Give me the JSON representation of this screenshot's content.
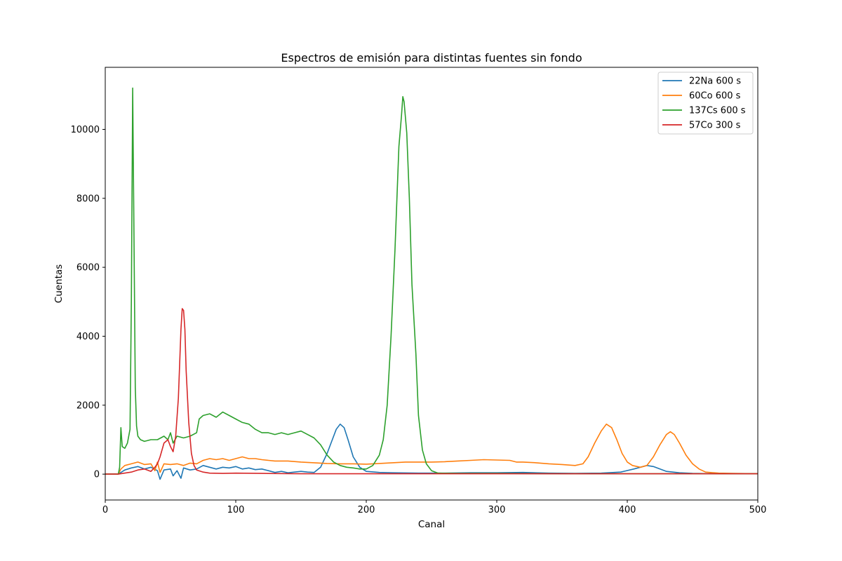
{
  "chart_data": {
    "type": "line",
    "title": "Espectros de emisión para distintas fuentes sin fondo",
    "xlabel": "Canal",
    "ylabel": "Cuentas",
    "xlim": [
      0,
      500
    ],
    "ylim": [
      -750,
      11800
    ],
    "xticks": [
      0,
      100,
      200,
      300,
      400,
      500
    ],
    "yticks": [
      0,
      2000,
      4000,
      6000,
      8000,
      10000
    ],
    "grid": false,
    "legend_position": "top-right",
    "series": [
      {
        "name": "22Na 600 s",
        "color": "#1f77b4",
        "points": [
          [
            0,
            0
          ],
          [
            10,
            0
          ],
          [
            15,
            120
          ],
          [
            20,
            180
          ],
          [
            25,
            220
          ],
          [
            30,
            150
          ],
          [
            35,
            200
          ],
          [
            40,
            100
          ],
          [
            42,
            -150
          ],
          [
            45,
            120
          ],
          [
            50,
            150
          ],
          [
            52,
            -50
          ],
          [
            55,
            100
          ],
          [
            58,
            -120
          ],
          [
            60,
            180
          ],
          [
            65,
            120
          ],
          [
            70,
            150
          ],
          [
            75,
            250
          ],
          [
            80,
            200
          ],
          [
            85,
            150
          ],
          [
            90,
            200
          ],
          [
            95,
            180
          ],
          [
            100,
            220
          ],
          [
            105,
            150
          ],
          [
            110,
            180
          ],
          [
            115,
            130
          ],
          [
            120,
            150
          ],
          [
            125,
            100
          ],
          [
            130,
            50
          ],
          [
            135,
            80
          ],
          [
            140,
            40
          ],
          [
            145,
            60
          ],
          [
            150,
            80
          ],
          [
            155,
            60
          ],
          [
            160,
            50
          ],
          [
            165,
            200
          ],
          [
            170,
            600
          ],
          [
            174,
            1000
          ],
          [
            177,
            1300
          ],
          [
            180,
            1450
          ],
          [
            183,
            1350
          ],
          [
            186,
            1000
          ],
          [
            190,
            500
          ],
          [
            195,
            200
          ],
          [
            200,
            80
          ],
          [
            210,
            50
          ],
          [
            220,
            40
          ],
          [
            240,
            30
          ],
          [
            260,
            30
          ],
          [
            280,
            40
          ],
          [
            300,
            40
          ],
          [
            320,
            50
          ],
          [
            340,
            30
          ],
          [
            360,
            20
          ],
          [
            380,
            30
          ],
          [
            395,
            60
          ],
          [
            405,
            150
          ],
          [
            410,
            200
          ],
          [
            415,
            250
          ],
          [
            420,
            220
          ],
          [
            425,
            150
          ],
          [
            430,
            80
          ],
          [
            440,
            40
          ],
          [
            450,
            20
          ],
          [
            470,
            10
          ],
          [
            500,
            10
          ]
        ]
      },
      {
        "name": "60Co 600 s",
        "color": "#ff7f0e",
        "points": [
          [
            0,
            0
          ],
          [
            10,
            0
          ],
          [
            12,
            150
          ],
          [
            15,
            250
          ],
          [
            20,
            300
          ],
          [
            25,
            350
          ],
          [
            30,
            280
          ],
          [
            35,
            300
          ],
          [
            38,
            100
          ],
          [
            40,
            350
          ],
          [
            42,
            50
          ],
          [
            45,
            300
          ],
          [
            50,
            280
          ],
          [
            55,
            300
          ],
          [
            60,
            250
          ],
          [
            65,
            320
          ],
          [
            70,
            300
          ],
          [
            75,
            400
          ],
          [
            80,
            450
          ],
          [
            85,
            420
          ],
          [
            90,
            450
          ],
          [
            95,
            400
          ],
          [
            100,
            450
          ],
          [
            105,
            500
          ],
          [
            110,
            450
          ],
          [
            115,
            450
          ],
          [
            120,
            420
          ],
          [
            125,
            400
          ],
          [
            130,
            380
          ],
          [
            140,
            380
          ],
          [
            150,
            350
          ],
          [
            160,
            330
          ],
          [
            170,
            310
          ],
          [
            180,
            300
          ],
          [
            190,
            300
          ],
          [
            200,
            290
          ],
          [
            210,
            310
          ],
          [
            220,
            330
          ],
          [
            230,
            350
          ],
          [
            240,
            350
          ],
          [
            250,
            350
          ],
          [
            260,
            360
          ],
          [
            270,
            380
          ],
          [
            280,
            400
          ],
          [
            290,
            420
          ],
          [
            300,
            410
          ],
          [
            310,
            400
          ],
          [
            315,
            350
          ],
          [
            320,
            350
          ],
          [
            330,
            330
          ],
          [
            340,
            300
          ],
          [
            350,
            280
          ],
          [
            360,
            250
          ],
          [
            366,
            300
          ],
          [
            370,
            500
          ],
          [
            375,
            900
          ],
          [
            380,
            1250
          ],
          [
            384,
            1450
          ],
          [
            388,
            1350
          ],
          [
            392,
            1000
          ],
          [
            396,
            600
          ],
          [
            400,
            350
          ],
          [
            404,
            250
          ],
          [
            410,
            200
          ],
          [
            415,
            250
          ],
          [
            420,
            500
          ],
          [
            425,
            850
          ],
          [
            430,
            1150
          ],
          [
            433,
            1230
          ],
          [
            436,
            1150
          ],
          [
            440,
            900
          ],
          [
            445,
            550
          ],
          [
            450,
            300
          ],
          [
            455,
            150
          ],
          [
            460,
            60
          ],
          [
            470,
            30
          ],
          [
            480,
            20
          ],
          [
            500,
            10
          ]
        ]
      },
      {
        "name": "137Cs 600 s",
        "color": "#2ca02c",
        "points": [
          [
            0,
            0
          ],
          [
            10,
            0
          ],
          [
            11,
            200
          ],
          [
            12,
            1350
          ],
          [
            13,
            800
          ],
          [
            15,
            750
          ],
          [
            17,
            900
          ],
          [
            19,
            1300
          ],
          [
            20,
            5000
          ],
          [
            21,
            11200
          ],
          [
            22,
            7000
          ],
          [
            23,
            2500
          ],
          [
            24,
            1400
          ],
          [
            25,
            1100
          ],
          [
            27,
            1000
          ],
          [
            30,
            950
          ],
          [
            35,
            1000
          ],
          [
            40,
            1000
          ],
          [
            45,
            1100
          ],
          [
            48,
            1000
          ],
          [
            50,
            1200
          ],
          [
            52,
            900
          ],
          [
            55,
            1100
          ],
          [
            60,
            1050
          ],
          [
            65,
            1100
          ],
          [
            70,
            1200
          ],
          [
            72,
            1600
          ],
          [
            75,
            1700
          ],
          [
            80,
            1750
          ],
          [
            85,
            1650
          ],
          [
            90,
            1800
          ],
          [
            95,
            1700
          ],
          [
            100,
            1600
          ],
          [
            105,
            1500
          ],
          [
            110,
            1450
          ],
          [
            115,
            1300
          ],
          [
            120,
            1200
          ],
          [
            125,
            1200
          ],
          [
            130,
            1150
          ],
          [
            135,
            1200
          ],
          [
            140,
            1150
          ],
          [
            145,
            1200
          ],
          [
            150,
            1250
          ],
          [
            155,
            1150
          ],
          [
            160,
            1050
          ],
          [
            165,
            850
          ],
          [
            170,
            550
          ],
          [
            175,
            350
          ],
          [
            180,
            250
          ],
          [
            185,
            200
          ],
          [
            190,
            180
          ],
          [
            195,
            150
          ],
          [
            200,
            150
          ],
          [
            205,
            250
          ],
          [
            210,
            550
          ],
          [
            213,
            1000
          ],
          [
            216,
            2000
          ],
          [
            219,
            4000
          ],
          [
            222,
            6500
          ],
          [
            225,
            9500
          ],
          [
            227,
            10400
          ],
          [
            228,
            10950
          ],
          [
            229,
            10800
          ],
          [
            231,
            9900
          ],
          [
            233,
            8000
          ],
          [
            235,
            5500
          ],
          [
            238,
            3500
          ],
          [
            240,
            1700
          ],
          [
            243,
            700
          ],
          [
            246,
            300
          ],
          [
            250,
            100
          ],
          [
            255,
            30
          ],
          [
            270,
            20
          ],
          [
            300,
            20
          ],
          [
            350,
            10
          ],
          [
            400,
            10
          ],
          [
            450,
            10
          ],
          [
            500,
            10
          ]
        ]
      },
      {
        "name": "57Co 300 s",
        "color": "#d62728",
        "points": [
          [
            0,
            0
          ],
          [
            10,
            0
          ],
          [
            20,
            60
          ],
          [
            25,
            120
          ],
          [
            30,
            150
          ],
          [
            35,
            80
          ],
          [
            38,
            200
          ],
          [
            40,
            300
          ],
          [
            42,
            500
          ],
          [
            45,
            900
          ],
          [
            48,
            1000
          ],
          [
            50,
            800
          ],
          [
            52,
            650
          ],
          [
            54,
            1100
          ],
          [
            56,
            2200
          ],
          [
            58,
            4200
          ],
          [
            59,
            4800
          ],
          [
            60,
            4750
          ],
          [
            61,
            4200
          ],
          [
            62,
            3000
          ],
          [
            64,
            1500
          ],
          [
            66,
            600
          ],
          [
            68,
            250
          ],
          [
            70,
            120
          ],
          [
            75,
            60
          ],
          [
            80,
            30
          ],
          [
            90,
            20
          ],
          [
            100,
            30
          ],
          [
            120,
            20
          ],
          [
            150,
            10
          ],
          [
            200,
            10
          ],
          [
            300,
            10
          ],
          [
            400,
            10
          ],
          [
            500,
            10
          ]
        ]
      }
    ]
  }
}
